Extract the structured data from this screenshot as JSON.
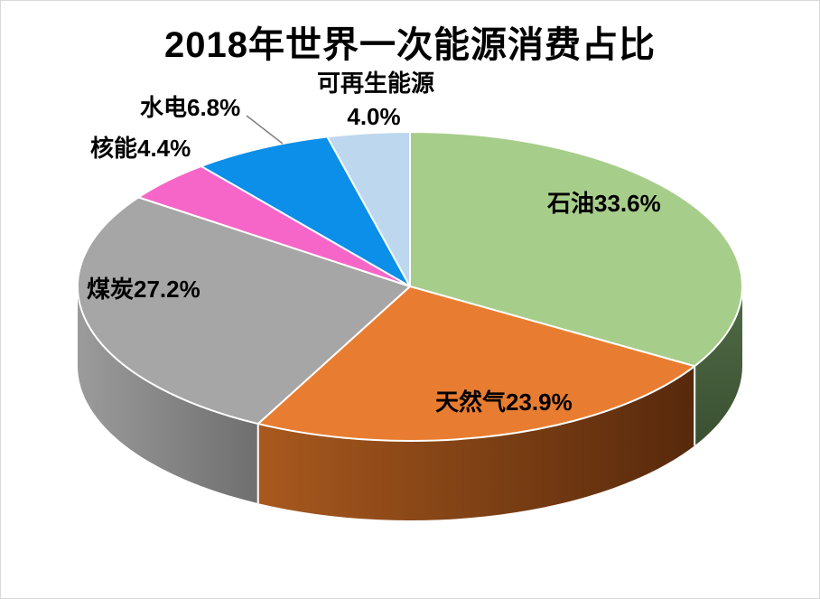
{
  "frame": {
    "background": "#ffffff",
    "border_color": "#d9d9d9"
  },
  "chart_data": {
    "type": "pie",
    "style": "3d",
    "title": "2018年世界一次能源消费占比",
    "unit": "%",
    "direction": "clockwise",
    "start_angle_deg": 0,
    "slice_stroke": "#ffffff",
    "leader_line_color": "#808080",
    "slices": [
      {
        "label": "石油",
        "value_pct": 33.6,
        "display": "石油33.6%",
        "color": "#A7CD8B",
        "side_from": "#516B47",
        "side_to": "#3A5031"
      },
      {
        "label": "天然气",
        "value_pct": 23.9,
        "display": "天然气23.9%",
        "color": "#E87D31",
        "side_from": "#A8591E",
        "side_to": "#57290C"
      },
      {
        "label": "煤炭",
        "value_pct": 27.2,
        "display": "煤炭27.2%",
        "color": "#A6A6A6",
        "side_from": "#9B9B9B",
        "side_to": "#6F6F6F"
      },
      {
        "label": "核能",
        "value_pct": 4.4,
        "display": "核能4.4%",
        "color": "#F666C8"
      },
      {
        "label": "水电",
        "value_pct": 6.8,
        "display": "水电6.8%",
        "color": "#0B8FE8"
      },
      {
        "label": "可再生能源",
        "value_pct": 4.0,
        "display": "可再生能源4.0%",
        "display_name": "可再生能源",
        "display_value": "4.0%",
        "color": "#BDD7EE"
      }
    ]
  }
}
